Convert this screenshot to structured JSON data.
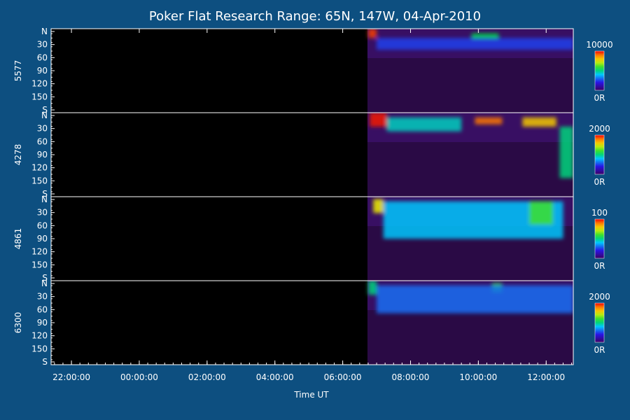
{
  "chart_data": {
    "type": "heatmap",
    "title": "Poker Flat Research Range: 65N, 147W, 04-Apr-2010",
    "xlabel": "Time UT",
    "x_ticks": [
      "22:00:00",
      "00:00:00",
      "02:00:00",
      "04:00:00",
      "06:00:00",
      "08:00:00",
      "10:00:00",
      "12:00:00"
    ],
    "x_range_hours": [
      21.4,
      36.8
    ],
    "data_start_hour": 30.73,
    "y_ticks": [
      "N",
      "30",
      "60",
      "90",
      "120",
      "150",
      "S"
    ],
    "y_range_deg": [
      0,
      180
    ],
    "panels": [
      {
        "label": "5577",
        "scale_max": "10000",
        "scale_min": "0R",
        "features": [
          {
            "t0": 30.75,
            "t1": 31.0,
            "a0": 0,
            "a1": 20,
            "level": 0.95
          },
          {
            "t0": 33.8,
            "t1": 34.6,
            "a0": 10,
            "a1": 25,
            "level": 0.55
          },
          {
            "t0": 31.0,
            "t1": 36.8,
            "a0": 20,
            "a1": 45,
            "level": 0.25
          }
        ]
      },
      {
        "label": "4278",
        "scale_max": "2000",
        "scale_min": "0R",
        "features": [
          {
            "t0": 30.8,
            "t1": 31.3,
            "a0": 0,
            "a1": 30,
            "level": 0.98
          },
          {
            "t0": 33.9,
            "t1": 34.7,
            "a0": 10,
            "a1": 25,
            "level": 0.9
          },
          {
            "t0": 35.3,
            "t1": 36.3,
            "a0": 10,
            "a1": 30,
            "level": 0.8
          },
          {
            "t0": 31.3,
            "t1": 33.5,
            "a0": 10,
            "a1": 40,
            "level": 0.45
          },
          {
            "t0": 36.4,
            "t1": 36.8,
            "a0": 30,
            "a1": 140,
            "level": 0.5
          }
        ]
      },
      {
        "label": "4861",
        "scale_max": "100",
        "scale_min": "0R",
        "features": [
          {
            "t0": 30.9,
            "t1": 31.2,
            "a0": 5,
            "a1": 35,
            "level": 0.75
          },
          {
            "t0": 31.2,
            "t1": 36.5,
            "a0": 10,
            "a1": 90,
            "level": 0.4
          },
          {
            "t0": 35.5,
            "t1": 36.2,
            "a0": 10,
            "a1": 60,
            "level": 0.6
          }
        ]
      },
      {
        "label": "6300",
        "scale_max": "2000",
        "scale_min": "0R",
        "features": [
          {
            "t0": 30.75,
            "t1": 31.0,
            "a0": 0,
            "a1": 30,
            "level": 0.5
          },
          {
            "t0": 34.4,
            "t1": 34.7,
            "a0": 5,
            "a1": 25,
            "level": 0.6
          },
          {
            "t0": 31.0,
            "t1": 36.8,
            "a0": 10,
            "a1": 70,
            "level": 0.3
          }
        ]
      }
    ]
  }
}
